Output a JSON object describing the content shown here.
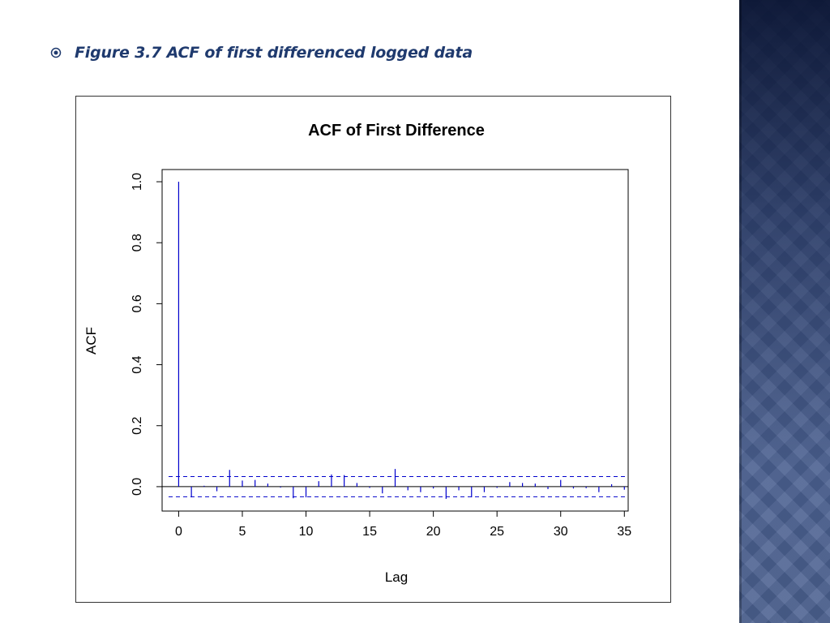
{
  "slide": {
    "caption": "Figure 3.7 ACF of first differenced logged data",
    "accent_color": "#1f3a6e",
    "bullet_icon": "circled-dot-icon"
  },
  "chart_data": {
    "type": "bar",
    "title": "ACF of First Difference",
    "xlabel": "Lag",
    "ylabel": "ACF",
    "xlim": [
      -1.3,
      35.3
    ],
    "ylim": [
      -0.08,
      1.04
    ],
    "x_ticks": [
      "0",
      "5",
      "10",
      "15",
      "20",
      "25",
      "30",
      "35"
    ],
    "y_ticks": [
      "0.0",
      "0.2",
      "0.4",
      "0.6",
      "0.8",
      "1.0"
    ],
    "lags": [
      0,
      1,
      2,
      3,
      4,
      5,
      6,
      7,
      8,
      9,
      10,
      11,
      12,
      13,
      14,
      15,
      16,
      17,
      18,
      19,
      20,
      21,
      22,
      23,
      24,
      25,
      26,
      27,
      28,
      29,
      30,
      31,
      32,
      33,
      34,
      35
    ],
    "values": [
      1.0,
      -0.035,
      0.003,
      -0.015,
      0.055,
      0.02,
      0.022,
      0.01,
      -0.003,
      -0.038,
      -0.035,
      0.018,
      0.04,
      0.038,
      0.012,
      -0.004,
      -0.022,
      0.058,
      -0.012,
      -0.018,
      -0.006,
      -0.04,
      -0.012,
      -0.035,
      -0.018,
      -0.004,
      0.015,
      0.012,
      0.01,
      -0.008,
      0.022,
      -0.006,
      -0.005,
      -0.018,
      0.008,
      -0.01
    ],
    "confidence_band": 0.033,
    "grid": false,
    "line_color": "#0000cc"
  }
}
